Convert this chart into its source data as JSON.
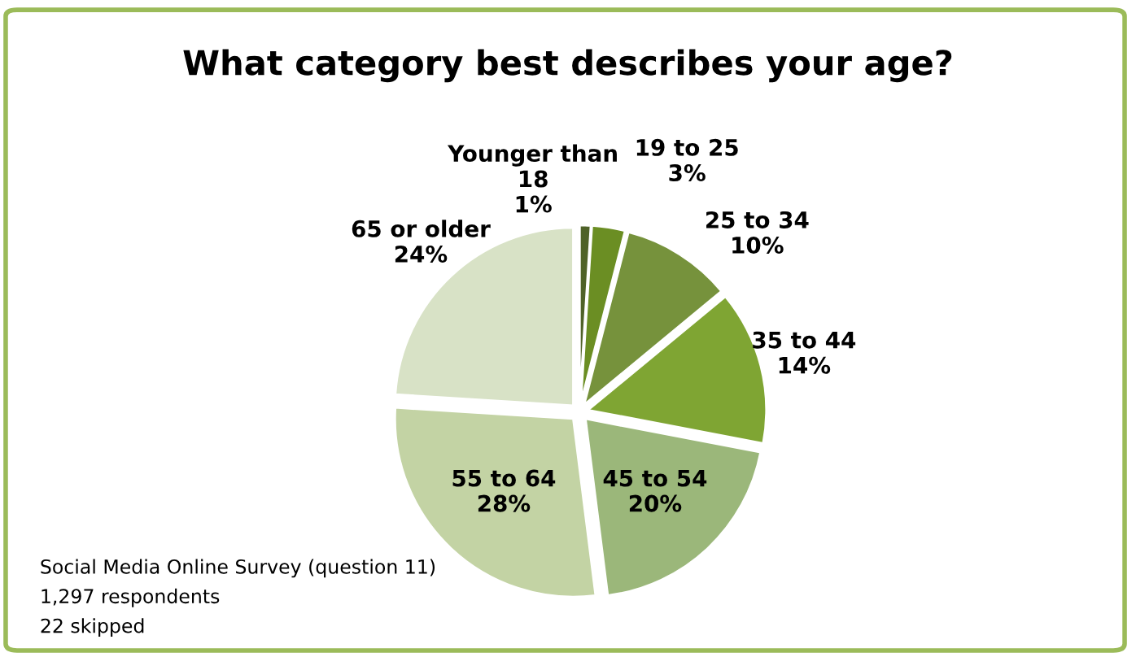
{
  "chart_data": {
    "type": "pie",
    "title": "What category best describes your age?",
    "categories": [
      "Younger than 18",
      "19 to 25",
      "25 to 34",
      "35 to 44",
      "45 to 54",
      "55 to 64",
      "65 or older"
    ],
    "values": [
      1,
      3,
      10,
      14,
      20,
      28,
      24
    ],
    "value_labels": [
      "1%",
      "3%",
      "10%",
      "14%",
      "20%",
      "28%",
      "24%"
    ],
    "colors": [
      "#4f6228",
      "#6b8e23",
      "#76923c",
      "#7fa533",
      "#9bb77a",
      "#c3d3a4",
      "#d8e2c6"
    ],
    "legend": false,
    "annotations": [
      "Social Media Online Survey (question 11)",
      "1,297 respondents",
      "22 skipped"
    ]
  }
}
